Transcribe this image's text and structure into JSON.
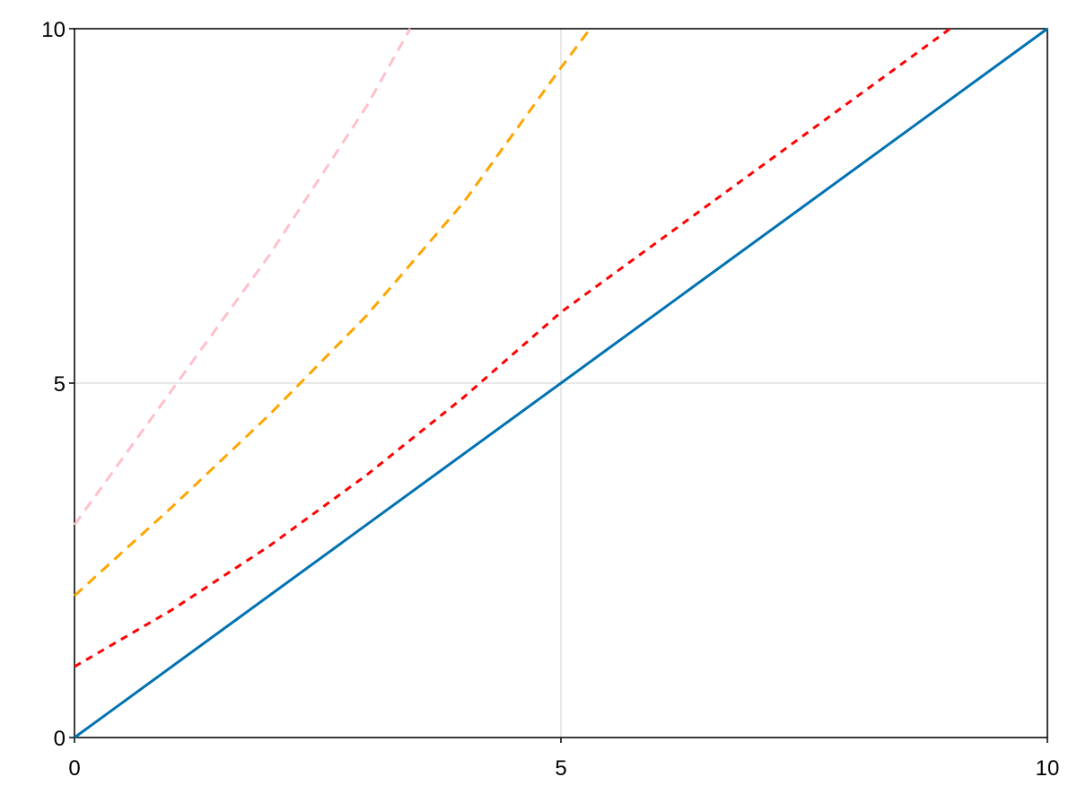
{
  "chart_data": {
    "type": "line",
    "xlim": [
      0,
      10
    ],
    "ylim": [
      0,
      10
    ],
    "xticks": [
      0,
      5,
      10
    ],
    "yticks": [
      0,
      5,
      10
    ],
    "grid": true,
    "series": [
      {
        "color": "#0072b2",
        "dash": "solid",
        "x": [
          0,
          10
        ],
        "values": [
          0,
          10
        ]
      },
      {
        "color": "#ff0000",
        "dash": "dot",
        "x": [
          0,
          1,
          2,
          3,
          4,
          5,
          6,
          7,
          8,
          9
        ],
        "values": [
          1,
          1.8,
          2.7,
          3.7,
          4.8,
          6,
          7,
          8,
          9,
          10
        ]
      },
      {
        "color": "#ffa500",
        "dash": "dash",
        "x": [
          0,
          1,
          2,
          3,
          4,
          5,
          5.3
        ],
        "values": [
          2,
          3.25,
          4.55,
          5.95,
          7.55,
          9.45,
          10
        ]
      },
      {
        "color": "#ffc0cb",
        "dash": "dash",
        "x": [
          0,
          1,
          2,
          3,
          3.45
        ],
        "values": [
          3,
          4.9,
          6.8,
          8.9,
          10
        ]
      }
    ]
  }
}
